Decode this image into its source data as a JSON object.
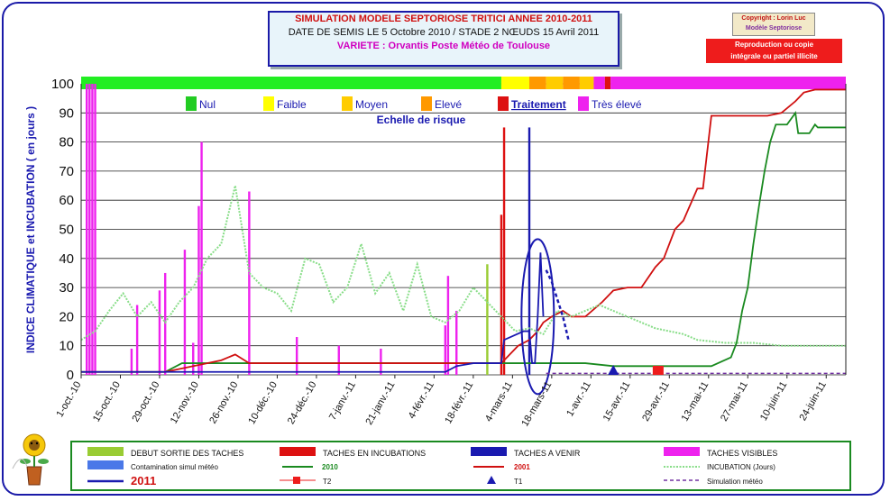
{
  "header": {
    "title": "SIMULATION MODELE SEPTORIOSE TRITICI  ANNEE 2010-2011",
    "subtitle": "DATE DE SEMIS LE 5 Octobre 2010 /  STADE 2 NŒUDS 15 Avril 2011",
    "variety": "VARIETE : Orvantis       Poste Météo de Toulouse"
  },
  "copyright": {
    "line1": "Copyright : Lorin Luc",
    "line2": "Modèle Septoriose"
  },
  "notice": {
    "line1": "Reproduction ou copie",
    "line2": "intégrale ou partiel illicite"
  },
  "risk_scale": {
    "title": "Echelle de risque",
    "items": [
      {
        "label": "Nul",
        "color": "#22cc22"
      },
      {
        "label": "Faible",
        "color": "#ffff00"
      },
      {
        "label": "Moyen",
        "color": "#ffcc00"
      },
      {
        "label": "Elevé",
        "color": "#ff9900"
      },
      {
        "label": "Traitement",
        "color": "#dd1111"
      },
      {
        "label": "Très élevé",
        "color": "#ee22ee"
      }
    ]
  },
  "legend": {
    "debut": "DEBUT SORTIE DES TACHES",
    "incub": "TACHES EN INCUBATIONS",
    "avenir": "TACHES A VENIR",
    "visibles": "TACHES VISIBLES",
    "contam": "Contamination simul météo",
    "y2010": "2010",
    "y2001": "2001",
    "incubjours": "INCUBATION (Jours)",
    "y2011": "2011",
    "t2": "T2",
    "t1": "T1",
    "simul": "Simulation météo"
  },
  "chart_data": {
    "type": "line",
    "ylabel": "INDICE CLIMATIQUE  et  INCUBATION  ( en jours )",
    "ylim": [
      0,
      100
    ],
    "yticks": [
      0,
      10,
      20,
      30,
      40,
      50,
      60,
      70,
      80,
      90,
      100
    ],
    "xlim_days": [
      0,
      273
    ],
    "x_tick_labels": [
      "1-oct.-10",
      "15-oct.-10",
      "29-oct.-10",
      "12-nov.-10",
      "26-nov.-10",
      "10-déc.-10",
      "24-déc.-10",
      "7-janv.-11",
      "21-janv.-11",
      "4-févr.-11",
      "18-févr.-11",
      "4-mars-11",
      "18-mars-11",
      "1-avr.-11",
      "15-avr.-11",
      "29-avr.-11",
      "13-mai-11",
      "27-mai-11",
      "10-juin-11",
      "24-juin-11"
    ],
    "risk_bar": [
      {
        "from": 0,
        "to": 150,
        "color": "#22ee22"
      },
      {
        "from": 150,
        "to": 160,
        "color": "#ffff00"
      },
      {
        "from": 160,
        "to": 166,
        "color": "#ff9900"
      },
      {
        "from": 166,
        "to": 172,
        "color": "#ffcc00"
      },
      {
        "from": 172,
        "to": 178,
        "color": "#ff9900"
      },
      {
        "from": 178,
        "to": 183,
        "color": "#ffcc00"
      },
      {
        "from": 183,
        "to": 187,
        "color": "#ee22ee"
      },
      {
        "from": 187,
        "to": 189,
        "color": "#dd1111"
      },
      {
        "from": 189,
        "to": 273,
        "color": "#ee22ee"
      }
    ],
    "series": [
      {
        "name": "2010",
        "color": "#1a8a20",
        "x": [
          0,
          30,
          36,
          60,
          90,
          120,
          150,
          160,
          175,
          180,
          190,
          200,
          210,
          225,
          232,
          234,
          236,
          238,
          240,
          242,
          244,
          246,
          248,
          250,
          252,
          255,
          256,
          260,
          262,
          263,
          270,
          273
        ],
        "values": [
          1,
          1,
          4,
          4,
          4,
          4,
          4,
          4,
          4,
          4,
          3,
          3,
          3,
          3,
          6,
          11,
          22,
          30,
          45,
          58,
          70,
          80,
          86,
          86,
          86,
          90,
          83,
          83,
          86,
          85,
          85,
          85
        ]
      },
      {
        "name": "2001",
        "color": "#d01010",
        "x": [
          0,
          30,
          50,
          55,
          60,
          90,
          120,
          140,
          150,
          156,
          160,
          163,
          165,
          168,
          170,
          172,
          175,
          180,
          186,
          190,
          195,
          200,
          205,
          208,
          212,
          215,
          220,
          222,
          225,
          240,
          245,
          250,
          255,
          258,
          262,
          273
        ],
        "values": [
          1,
          1,
          5,
          7,
          4,
          4,
          4,
          4,
          4,
          10,
          12,
          15,
          18,
          20,
          21,
          22,
          20,
          20,
          25,
          29,
          30,
          30,
          37,
          40,
          50,
          53,
          64,
          64,
          89,
          89,
          89,
          90,
          94,
          97,
          98,
          98
        ]
      },
      {
        "name": "2011",
        "color": "#1a1ab0",
        "x": [
          0,
          40,
          130,
          134,
          140,
          150,
          151,
          158,
          160,
          161,
          162,
          163,
          164,
          165
        ],
        "values": [
          1,
          1,
          1,
          3,
          4,
          4,
          12,
          15,
          15,
          4,
          4,
          20,
          42,
          20
        ]
      },
      {
        "name": "INCUBATION (Jours)",
        "color": "#88dd88",
        "x": [
          0,
          5,
          10,
          15,
          20,
          25,
          30,
          35,
          40,
          45,
          50,
          55,
          60,
          65,
          70,
          75,
          80,
          85,
          90,
          95,
          100,
          105,
          110,
          115,
          120,
          125,
          130,
          135,
          140,
          145,
          150,
          155,
          160,
          165,
          170,
          175,
          180,
          185,
          190,
          195,
          200,
          205,
          210,
          215,
          220,
          230,
          240,
          250,
          260,
          273
        ],
        "values": [
          12,
          15,
          22,
          28,
          20,
          25,
          18,
          25,
          30,
          40,
          45,
          65,
          35,
          30,
          28,
          22,
          40,
          38,
          25,
          30,
          45,
          28,
          35,
          22,
          38,
          20,
          18,
          22,
          30,
          25,
          20,
          15,
          16,
          14,
          22,
          20,
          22,
          24,
          22,
          20,
          18,
          16,
          15,
          14,
          12,
          11,
          11,
          10,
          10,
          10
        ]
      }
    ],
    "spikes": {
      "magenta": [
        {
          "x": 2,
          "v": 100
        },
        {
          "x": 3,
          "v": 100
        },
        {
          "x": 4,
          "v": 100
        },
        {
          "x": 5,
          "v": 100
        },
        {
          "x": 18,
          "v": 9
        },
        {
          "x": 20,
          "v": 24
        },
        {
          "x": 28,
          "v": 29
        },
        {
          "x": 30,
          "v": 35
        },
        {
          "x": 37,
          "v": 43
        },
        {
          "x": 40,
          "v": 11
        },
        {
          "x": 42,
          "v": 58
        },
        {
          "x": 43,
          "v": 80
        },
        {
          "x": 60,
          "v": 63
        },
        {
          "x": 77,
          "v": 13
        },
        {
          "x": 92,
          "v": 10
        },
        {
          "x": 107,
          "v": 9
        },
        {
          "x": 130,
          "v": 17
        },
        {
          "x": 131,
          "v": 34
        },
        {
          "x": 134,
          "v": 22
        }
      ],
      "red": [
        {
          "x": 150,
          "v": 55
        },
        {
          "x": 151,
          "v": 85
        }
      ],
      "olive": [
        {
          "x": 145,
          "v": 38
        }
      ],
      "blue": [
        {
          "x": 160,
          "v": 85
        }
      ]
    },
    "markers": {
      "t1": {
        "x": 190,
        "v": 0,
        "label": "T1"
      },
      "t2": {
        "x": 206,
        "v": 0,
        "label": "T2"
      }
    }
  }
}
